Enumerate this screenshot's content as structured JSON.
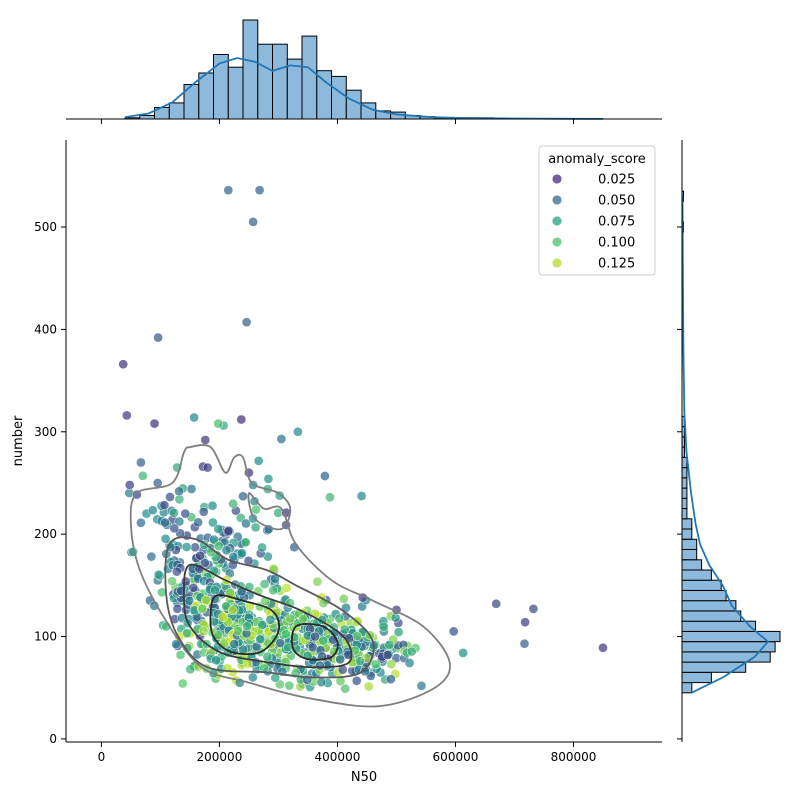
{
  "chart_data": {
    "type": "scatter",
    "title": "",
    "xlabel": "N50",
    "ylabel": "number",
    "xlim": [
      -60000,
      950000
    ],
    "ylim": [
      -3,
      585
    ],
    "x_ticks": [
      0,
      200000,
      400000,
      600000,
      800000
    ],
    "x_tick_labels": [
      "0",
      "200000",
      "400000",
      "600000",
      "800000"
    ],
    "y_ticks": [
      0,
      100,
      200,
      300,
      400,
      500
    ],
    "y_tick_labels": [
      "0",
      "100",
      "200",
      "300",
      "400",
      "500"
    ],
    "grid": false,
    "legend": {
      "title": "anomaly_score",
      "placement": "top-right",
      "entries": [
        {
          "label": "0.025",
          "color": "#482878"
        },
        {
          "label": "0.050",
          "color": "#31688e"
        },
        {
          "label": "0.075",
          "color": "#26a185"
        },
        {
          "label": "0.100",
          "color": "#4ac16d"
        },
        {
          "label": "0.125",
          "color": "#b5de2b"
        }
      ]
    },
    "color_scale": {
      "name": "viridis",
      "stops": [
        {
          "value": 0.015,
          "color": "#482878"
        },
        {
          "value": 0.04,
          "color": "#3b528b"
        },
        {
          "value": 0.06,
          "color": "#2c728e"
        },
        {
          "value": 0.08,
          "color": "#21918c"
        },
        {
          "value": 0.1,
          "color": "#4ac16d"
        },
        {
          "value": 0.12,
          "color": "#a0da39"
        },
        {
          "value": 0.135,
          "color": "#dde318"
        }
      ]
    },
    "outlier_points": [
      {
        "x": 215000,
        "y": 536,
        "score": 0.05
      },
      {
        "x": 268000,
        "y": 536,
        "score": 0.05
      },
      {
        "x": 257000,
        "y": 505,
        "score": 0.05
      },
      {
        "x": 96000,
        "y": 392,
        "score": 0.045
      },
      {
        "x": 246000,
        "y": 407,
        "score": 0.05
      },
      {
        "x": 37000,
        "y": 366,
        "score": 0.025
      },
      {
        "x": 43000,
        "y": 316,
        "score": 0.025
      },
      {
        "x": 90000,
        "y": 308,
        "score": 0.02
      },
      {
        "x": 237000,
        "y": 312,
        "score": 0.02
      },
      {
        "x": 157000,
        "y": 314,
        "score": 0.075
      },
      {
        "x": 207000,
        "y": 306,
        "score": 0.09
      },
      {
        "x": 198000,
        "y": 308,
        "score": 0.1
      },
      {
        "x": 333000,
        "y": 300,
        "score": 0.075
      },
      {
        "x": 305000,
        "y": 293,
        "score": 0.06
      },
      {
        "x": 176000,
        "y": 292,
        "score": 0.025
      },
      {
        "x": 250000,
        "y": 260,
        "score": 0.025
      },
      {
        "x": 172000,
        "y": 266,
        "score": 0.025
      },
      {
        "x": 180000,
        "y": 265,
        "score": 0.03
      },
      {
        "x": 67000,
        "y": 270,
        "score": 0.05
      },
      {
        "x": 283000,
        "y": 254,
        "score": 0.08
      },
      {
        "x": 48000,
        "y": 248,
        "score": 0.03
      },
      {
        "x": 669000,
        "y": 132,
        "score": 0.035
      },
      {
        "x": 732000,
        "y": 127,
        "score": 0.035
      },
      {
        "x": 718000,
        "y": 114,
        "score": 0.03
      },
      {
        "x": 717000,
        "y": 93,
        "score": 0.05
      },
      {
        "x": 850000,
        "y": 89,
        "score": 0.025
      },
      {
        "x": 597000,
        "y": 105,
        "score": 0.04
      },
      {
        "x": 613000,
        "y": 84,
        "score": 0.08
      },
      {
        "x": 500000,
        "y": 126,
        "score": 0.03
      },
      {
        "x": 443000,
        "y": 138,
        "score": 0.03
      },
      {
        "x": 313000,
        "y": 221,
        "score": 0.02
      },
      {
        "x": 313000,
        "y": 209,
        "score": 0.035
      },
      {
        "x": 262000,
        "y": 224,
        "score": 0.1
      },
      {
        "x": 282000,
        "y": 244,
        "score": 0.09
      },
      {
        "x": 240000,
        "y": 237,
        "score": 0.05
      }
    ],
    "clusters": [
      {
        "cx": 175000,
        "cy": 150,
        "sx": 45000,
        "sy": 28,
        "n": 150,
        "smin": 0.03,
        "smax": 0.11
      },
      {
        "cx": 240000,
        "cy": 105,
        "sx": 45000,
        "sy": 20,
        "n": 230,
        "smin": 0.06,
        "smax": 0.135
      },
      {
        "cx": 350000,
        "cy": 95,
        "sx": 55000,
        "sy": 22,
        "n": 220,
        "smin": 0.05,
        "smax": 0.13
      },
      {
        "cx": 440000,
        "cy": 85,
        "sx": 45000,
        "sy": 14,
        "n": 110,
        "smin": 0.03,
        "smax": 0.12
      },
      {
        "cx": 120000,
        "cy": 210,
        "sx": 30000,
        "sy": 25,
        "n": 40,
        "smin": 0.03,
        "smax": 0.1
      },
      {
        "cx": 230000,
        "cy": 200,
        "sx": 60000,
        "sy": 30,
        "n": 50,
        "smin": 0.03,
        "smax": 0.1
      }
    ],
    "kde_contours": [
      {
        "level": "outer",
        "color": "#7f7f7f",
        "points": [
          [
            140000,
            280
          ],
          [
            120000,
            250
          ],
          [
            60000,
            240
          ],
          [
            50000,
            210
          ],
          [
            65000,
            165
          ],
          [
            110000,
            115
          ],
          [
            170000,
            70
          ],
          [
            250000,
            55
          ],
          [
            350000,
            40
          ],
          [
            470000,
            32
          ],
          [
            565000,
            50
          ],
          [
            590000,
            75
          ],
          [
            545000,
            110
          ],
          [
            460000,
            135
          ],
          [
            390000,
            155
          ],
          [
            330000,
            190
          ],
          [
            305000,
            225
          ],
          [
            275000,
            225
          ],
          [
            250000,
            240
          ],
          [
            260000,
            215
          ],
          [
            305000,
            205
          ],
          [
            320000,
            225
          ],
          [
            300000,
            240
          ],
          [
            255000,
            250
          ],
          [
            240000,
            275
          ],
          [
            225000,
            275
          ],
          [
            210000,
            260
          ],
          [
            185000,
            285
          ],
          [
            150000,
            285
          ]
        ]
      },
      {
        "level": "mid",
        "color": "#5a5a5a",
        "points": [
          [
            115000,
            190
          ],
          [
            160000,
            195
          ],
          [
            215000,
            175
          ],
          [
            280000,
            165
          ],
          [
            330000,
            150
          ],
          [
            410000,
            125
          ],
          [
            460000,
            95
          ],
          [
            440000,
            65
          ],
          [
            360000,
            60
          ],
          [
            280000,
            65
          ],
          [
            180000,
            70
          ],
          [
            130000,
            100
          ],
          [
            110000,
            140
          ]
        ]
      },
      {
        "level": "inner",
        "color": "#3c3c3c",
        "points": [
          [
            150000,
            170
          ],
          [
            210000,
            155
          ],
          [
            270000,
            140
          ],
          [
            340000,
            125
          ],
          [
            410000,
            100
          ],
          [
            420000,
            75
          ],
          [
            360000,
            70
          ],
          [
            280000,
            75
          ],
          [
            200000,
            85
          ],
          [
            150000,
            110
          ],
          [
            140000,
            140
          ]
        ]
      },
      {
        "level": "core-left",
        "color": "#2a2a2a",
        "points": [
          [
            195000,
            140
          ],
          [
            240000,
            135
          ],
          [
            290000,
            125
          ],
          [
            300000,
            105
          ],
          [
            270000,
            85
          ],
          [
            220000,
            85
          ],
          [
            190000,
            100
          ],
          [
            185000,
            122
          ]
        ]
      },
      {
        "level": "core-right",
        "color": "#2a2a2a",
        "points": [
          [
            330000,
            110
          ],
          [
            375000,
            110
          ],
          [
            400000,
            95
          ],
          [
            390000,
            80
          ],
          [
            350000,
            78
          ],
          [
            325000,
            88
          ]
        ]
      }
    ],
    "marginal_x": {
      "xlabel_shown": false,
      "bin_width": 25000,
      "bin_starts": [
        40000,
        65000,
        90000,
        115000,
        140000,
        165000,
        190000,
        215000,
        240000,
        265000,
        290000,
        315000,
        340000,
        365000,
        390000,
        415000,
        440000,
        465000,
        490000,
        515000,
        540000,
        565000,
        590000,
        615000,
        640000
      ],
      "counts": [
        1,
        3,
        10,
        14,
        30,
        40,
        56,
        45,
        86,
        65,
        65,
        52,
        72,
        42,
        37,
        25,
        14,
        7,
        6,
        3,
        2,
        1,
        1,
        1,
        1
      ],
      "kde_x": [
        40000,
        80000,
        120000,
        160000,
        200000,
        230000,
        260000,
        290000,
        320000,
        350000,
        380000,
        420000,
        460000,
        500000,
        560000,
        620000,
        700000,
        800000,
        850000
      ],
      "kde_density": [
        2,
        6,
        18,
        40,
        60,
        66,
        62,
        52,
        58,
        56,
        40,
        22,
        10,
        5,
        2,
        1,
        0.5,
        0.2,
        0.1
      ]
    },
    "marginal_y": {
      "bin_width": 10,
      "bin_starts": [
        45,
        55,
        65,
        75,
        85,
        95,
        105,
        115,
        125,
        135,
        145,
        155,
        165,
        175,
        185,
        195,
        205,
        215,
        225,
        235,
        245,
        255,
        265,
        275,
        285,
        295,
        305,
        395,
        495,
        525
      ],
      "counts": [
        2,
        6,
        13,
        18,
        19,
        20,
        15,
        12,
        11,
        9,
        8,
        6,
        4,
        3,
        3,
        2,
        2,
        1,
        1,
        1,
        1,
        1,
        1,
        0.5,
        0.5,
        0.5,
        0.5,
        0.3,
        0.3,
        0.3
      ],
      "kde_y": [
        45,
        60,
        80,
        95,
        110,
        130,
        150,
        170,
        190,
        210,
        240,
        280,
        320,
        380,
        450,
        530
      ],
      "kde_density": [
        2,
        9,
        16,
        19,
        15,
        11,
        9,
        6,
        4,
        3,
        2,
        1,
        0.5,
        0.3,
        0.2,
        0.1
      ]
    }
  }
}
